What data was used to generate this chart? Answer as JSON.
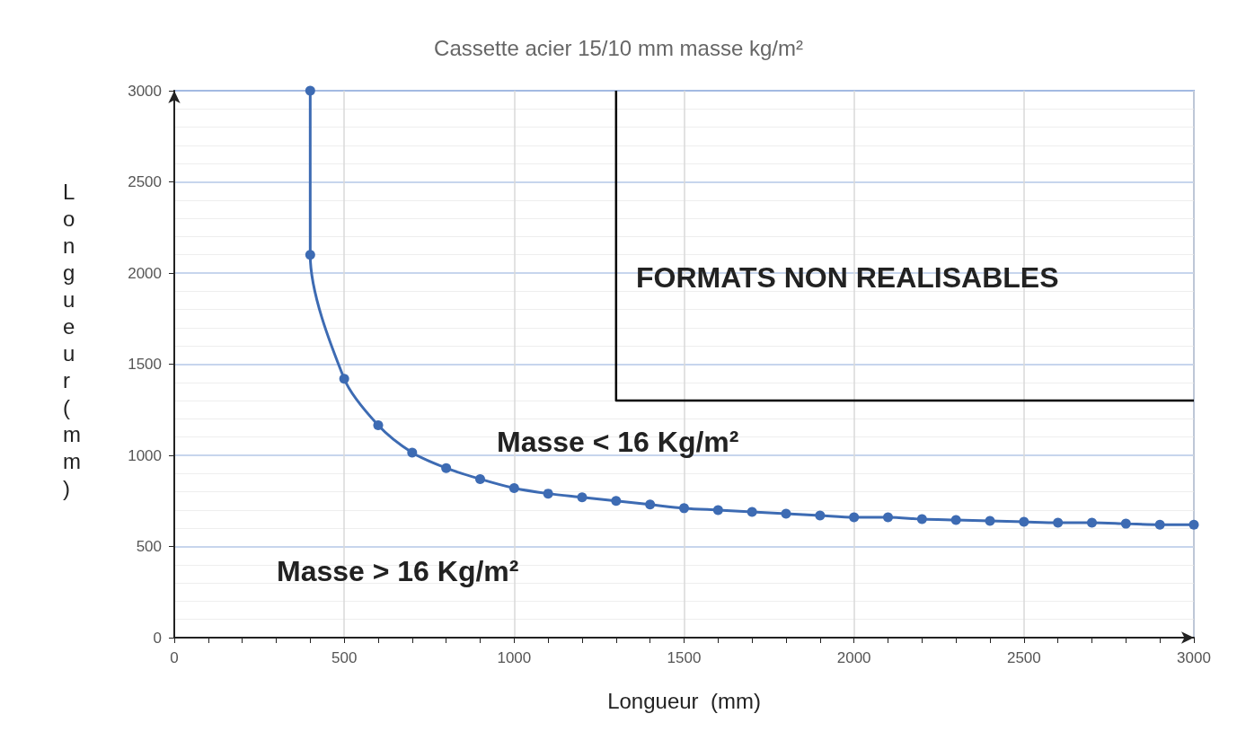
{
  "chart_data": {
    "type": "line",
    "title": "Cassette acier 15/10 mm masse kg/m²",
    "xlabel": "Longueur  (mm)",
    "ylabel": "Longueur (mm)",
    "xlim": [
      0,
      3000
    ],
    "ylim": [
      0,
      3000
    ],
    "xticks": [
      0,
      500,
      1000,
      1500,
      2000,
      2500,
      3000
    ],
    "yticks": [
      0,
      500,
      1000,
      1500,
      2000,
      2500,
      3000
    ],
    "grid": true,
    "series": [
      {
        "color": "#3d6bb3",
        "marker": "circle",
        "x": [
          400,
          400,
          500,
          600,
          700,
          800,
          900,
          1000,
          1100,
          1200,
          1300,
          1400,
          1500,
          1600,
          1700,
          1800,
          1900,
          2000,
          2100,
          2200,
          2300,
          2400,
          2500,
          2600,
          2700,
          2800,
          2900,
          3000
        ],
        "values": [
          3000,
          2100,
          1420,
          1165,
          1015,
          930,
          870,
          820,
          790,
          770,
          750,
          730,
          710,
          700,
          690,
          680,
          670,
          660,
          660,
          650,
          645,
          640,
          635,
          630,
          630,
          625,
          620,
          620
        ]
      },
      {
        "color": "#000000",
        "marker": "none",
        "x": [
          1300,
          1300,
          3000
        ],
        "values": [
          3000,
          1300,
          1300
        ]
      }
    ],
    "annotations": [
      "FORMATS NON REALISABLES",
      "Masse < 16 Kg/m²",
      "Masse > 16 Kg/m²"
    ]
  }
}
